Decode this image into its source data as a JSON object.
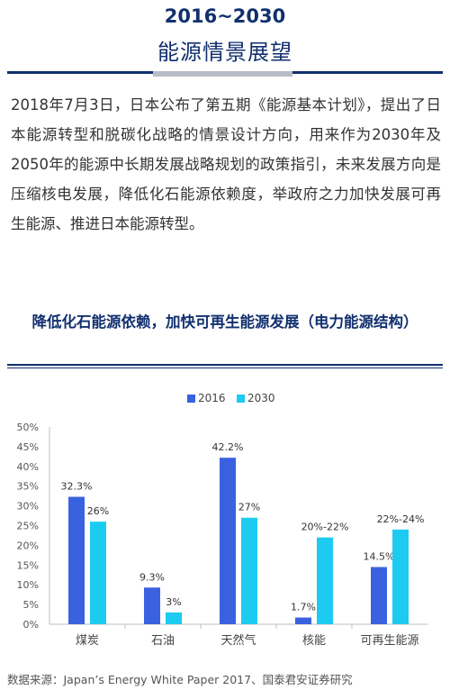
{
  "header": {
    "year_range": "2016~2030",
    "title": "能源情景展望"
  },
  "intro": {
    "text": "2018年7月3日，日本公布了第五期《能源基本计划》，提出了日本能源转型和脱碳化战略的情景设计方向，用来作为2030年及2050年的能源中长期发展战略规划的政策指引，未来发展方向是压缩核电发展，降低化石能源依赖度，举政府之力加快发展可再生能源、推进日本能源转型。"
  },
  "section": {
    "title": "降低化石能源依赖，加快可再生能源发展（电力能源结构）"
  },
  "colors": {
    "series_2016": "#3a62e0",
    "series_2030": "#1ecbf0",
    "title_navy": "#12306e"
  },
  "chart_data": {
    "type": "bar",
    "categories": [
      "煤炭",
      "石油",
      "天然气",
      "核能",
      "可再生能源"
    ],
    "series": [
      {
        "name": "2016",
        "values": [
          32.3,
          9.3,
          42.2,
          1.7,
          14.5
        ],
        "labels": [
          "32.3%",
          "9.3%",
          "42.2%",
          "1.7%",
          "14.5%"
        ]
      },
      {
        "name": "2030",
        "values": [
          26,
          3,
          27,
          22,
          24
        ],
        "labels": [
          "26%",
          "3%",
          "27%",
          "20%-22%",
          "22%-24%"
        ]
      }
    ],
    "yticks": [
      "0%",
      "5%",
      "10%",
      "15%",
      "20%",
      "25%",
      "30%",
      "35%",
      "40%",
      "45%",
      "50%"
    ],
    "ylim": [
      0,
      50
    ],
    "legend_position": "top-center",
    "grid": false
  },
  "source": {
    "text": "数据来源：Japan’s Energy White Paper 2017、国泰君安证券研究"
  }
}
